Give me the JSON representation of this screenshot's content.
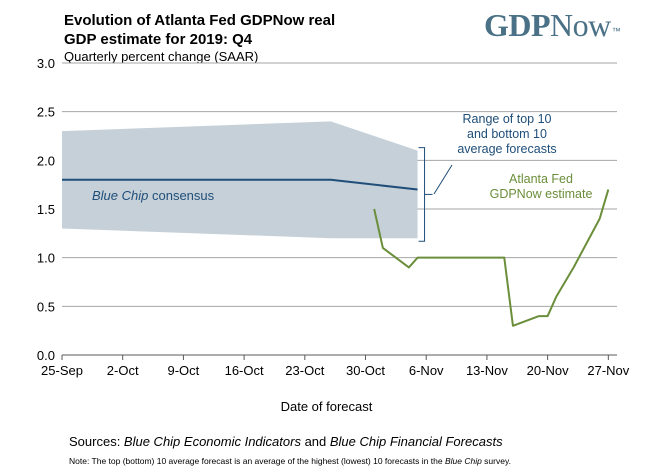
{
  "header": {
    "title_line1": "Evolution of Atlanta Fed GDPNow real",
    "title_line2": "GDP estimate for 2019: Q4",
    "subtitle": "Quarterly percent change (SAAR)"
  },
  "logo": {
    "part1": "GDP",
    "part2": "Now",
    "mark": "™"
  },
  "footer": {
    "sources_prefix": "Sources:  ",
    "sources_italic1": "Blue Chip Economic Indicators",
    "sources_mid": " and ",
    "sources_italic2": "Blue Chip Financial Forecasts",
    "note_prefix": "Note:  The top (bottom) 10 average forecast is an average of the highest (lowest) 10 forecasts in the ",
    "note_italic": "Blue Chip",
    "note_suffix": " survey."
  },
  "annotations": {
    "range_line1": "Range of top 10",
    "range_line2": "and bottom 10",
    "range_line3": "average forecasts",
    "gdpnow_line1": "Atlanta Fed",
    "gdpnow_line2": "GDPNow estimate",
    "bluechip_italic": "Blue Chip",
    "bluechip_rest": " consensus"
  },
  "colors": {
    "gdpnow": "#6b8e3a",
    "consensus": "#1f4e79",
    "range_fill": "#c5d0d8",
    "logo": "#4a7186"
  },
  "chart_data": {
    "type": "line",
    "title": "Evolution of Atlanta Fed GDPNow real GDP estimate for 2019: Q4",
    "subtitle": "Quarterly percent change (SAAR)",
    "xlabel": "Date of forecast",
    "ylabel": "",
    "x_ticks": [
      "25-Sep",
      "2-Oct",
      "9-Oct",
      "16-Oct",
      "23-Oct",
      "30-Oct",
      "6-Nov",
      "13-Nov",
      "20-Nov",
      "27-Nov"
    ],
    "y_ticks": [
      "0.0",
      "0.5",
      "1.0",
      "1.5",
      "2.0",
      "2.5",
      "3.0"
    ],
    "ylim": [
      0,
      3
    ],
    "xlim": [
      "2019-09-25",
      "2019-11-28"
    ],
    "grid": "horizontal",
    "series": [
      {
        "name": "Atlanta Fed GDPNow estimate",
        "points": [
          {
            "x": "2019-10-31",
            "y": 1.5
          },
          {
            "x": "2019-11-01",
            "y": 1.1
          },
          {
            "x": "2019-11-04",
            "y": 0.9
          },
          {
            "x": "2019-11-05",
            "y": 1.0
          },
          {
            "x": "2019-11-08",
            "y": 1.0
          },
          {
            "x": "2019-11-13",
            "y": 1.0
          },
          {
            "x": "2019-11-15",
            "y": 1.0
          },
          {
            "x": "2019-11-16",
            "y": 0.3
          },
          {
            "x": "2019-11-19",
            "y": 0.4
          },
          {
            "x": "2019-11-20",
            "y": 0.4
          },
          {
            "x": "2019-11-21",
            "y": 0.6
          },
          {
            "x": "2019-11-23",
            "y": 0.9
          },
          {
            "x": "2019-11-26",
            "y": 1.4
          },
          {
            "x": "2019-11-27",
            "y": 1.7
          }
        ]
      },
      {
        "name": "Blue Chip consensus",
        "points": [
          {
            "x": "2019-09-25",
            "y": 1.8
          },
          {
            "x": "2019-10-26",
            "y": 1.8
          },
          {
            "x": "2019-11-05",
            "y": 1.7
          }
        ]
      }
    ],
    "range_band": {
      "name": "Range of top 10 and bottom 10 average forecasts",
      "points": [
        {
          "x": "2019-09-25",
          "top": 2.3,
          "bottom": 1.3
        },
        {
          "x": "2019-10-26",
          "top": 2.4,
          "bottom": 1.2
        },
        {
          "x": "2019-11-05",
          "top": 2.1,
          "bottom": 1.2
        }
      ]
    }
  }
}
